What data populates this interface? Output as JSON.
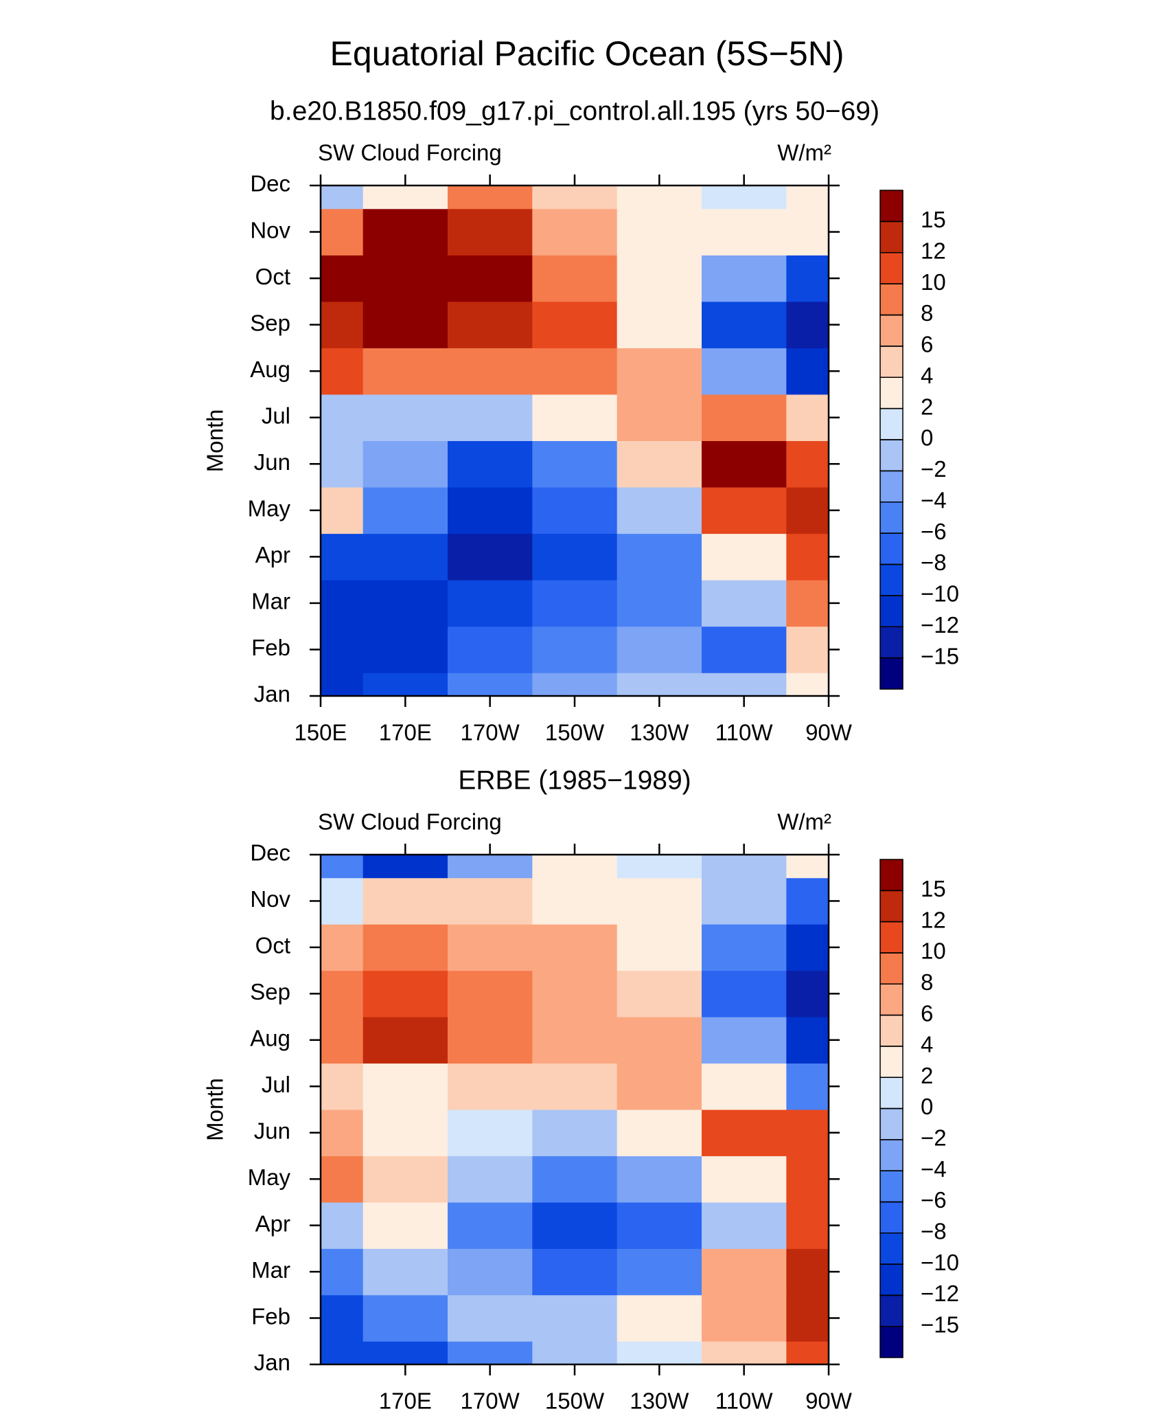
{
  "title": "Equatorial Pacific Ocean (5S−5N)",
  "chart_data": [
    {
      "type": "contour",
      "title": "b.e20.B1850.f09_g17.pi_control.all.195 (yrs 50−69)",
      "left_label": "SW Cloud Forcing",
      "right_label": "W/m²",
      "y_label": "Month",
      "categories": [
        "Jan",
        "Feb",
        "Mar",
        "Apr",
        "May",
        "Jun",
        "Jul",
        "Aug",
        "Sep",
        "Oct",
        "Nov",
        "Dec"
      ],
      "x": [
        150,
        170,
        190,
        210,
        230,
        250,
        270
      ],
      "xlim": [
        150,
        270
      ],
      "xticks": [
        {
          "value": 150,
          "label": "150E"
        },
        {
          "value": 170,
          "label": "170E"
        },
        {
          "value": 190,
          "label": "170W"
        },
        {
          "value": 210,
          "label": "150W"
        },
        {
          "value": 230,
          "label": "130W"
        },
        {
          "value": 250,
          "label": "110W"
        },
        {
          "value": 270,
          "label": "90W"
        }
      ],
      "z": [
        [
          -12,
          -10,
          -6,
          -4,
          -2,
          -2,
          2
        ],
        [
          -12,
          -12,
          -8,
          -6,
          -4,
          -8,
          4
        ],
        [
          -12,
          -12,
          -10,
          -8,
          -6,
          -2,
          8
        ],
        [
          -10,
          -10,
          -15,
          -10,
          -6,
          2,
          10
        ],
        [
          4,
          -6,
          -12,
          -8,
          -2,
          10,
          12
        ],
        [
          -2,
          -4,
          -10,
          -6,
          4,
          15,
          10
        ],
        [
          -2,
          -2,
          -2,
          2,
          6,
          8,
          4
        ],
        [
          10,
          8,
          8,
          8,
          6,
          -4,
          -12
        ],
        [
          12,
          15,
          12,
          10,
          2,
          -10,
          -15
        ],
        [
          15,
          15,
          15,
          8,
          2,
          -4,
          -10
        ],
        [
          8,
          15,
          12,
          6,
          2,
          2,
          2
        ],
        [
          -2,
          2,
          8,
          4,
          2,
          0,
          2
        ]
      ],
      "levels": [
        {
          "value": -15,
          "label": "−15"
        },
        {
          "value": -12,
          "label": "−12"
        },
        {
          "value": -10,
          "label": "−10"
        },
        {
          "value": -8,
          "label": "−8"
        },
        {
          "value": -6,
          "label": "−6"
        },
        {
          "value": -4,
          "label": "−4"
        },
        {
          "value": -2,
          "label": "−2"
        },
        0,
        2,
        4,
        6,
        8,
        10,
        12,
        15
      ],
      "colors": [
        "#00007f",
        "#0a1fa8",
        "#0033cc",
        "#0a48e0",
        "#2a64f0",
        "#4a82f5",
        "#7da4f5",
        "#a9c4f5",
        "#d4e6fc",
        "#fdeee0",
        "#fcd0b6",
        "#fba882",
        "#f57b4c",
        "#e8481e",
        "#c02a0c",
        "#8c0000"
      ]
    },
    {
      "type": "contour",
      "title": "ERBE (1985−1989)",
      "left_label": "SW Cloud Forcing",
      "right_label": "W/m²",
      "y_label": "Month",
      "categories": [
        "Jan",
        "Feb",
        "Mar",
        "Apr",
        "May",
        "Jun",
        "Jul",
        "Aug",
        "Sep",
        "Oct",
        "Nov",
        "Dec"
      ],
      "x": [
        150,
        170,
        190,
        210,
        230,
        250,
        270
      ],
      "xlim": [
        150,
        270
      ],
      "xticks": [
        {
          "value": 170,
          "label": "170E"
        },
        {
          "value": 190,
          "label": "170W"
        },
        {
          "value": 210,
          "label": "150W"
        },
        {
          "value": 230,
          "label": "130W"
        },
        {
          "value": 250,
          "label": "110W"
        },
        {
          "value": 270,
          "label": "90W"
        }
      ],
      "z": [
        [
          -10,
          -10,
          -6,
          -2,
          0,
          4,
          10
        ],
        [
          -10,
          -6,
          -2,
          -2,
          2,
          6,
          12
        ],
        [
          -6,
          -2,
          -4,
          -8,
          -6,
          6,
          12
        ],
        [
          -2,
          2,
          -6,
          -10,
          -8,
          -2,
          10
        ],
        [
          8,
          4,
          -2,
          -6,
          -4,
          2,
          10
        ],
        [
          6,
          2,
          0,
          -2,
          2,
          10,
          10
        ],
        [
          4,
          2,
          4,
          4,
          6,
          2,
          -6
        ],
        [
          8,
          12,
          8,
          6,
          6,
          -4,
          -12
        ],
        [
          8,
          10,
          8,
          6,
          4,
          -8,
          -15
        ],
        [
          6,
          8,
          6,
          6,
          2,
          -6,
          -12
        ],
        [
          0,
          4,
          4,
          2,
          2,
          -2,
          -8
        ],
        [
          -6,
          -12,
          -4,
          2,
          0,
          -2,
          2
        ]
      ],
      "levels": [
        {
          "value": -15,
          "label": "−15"
        },
        {
          "value": -12,
          "label": "−12"
        },
        {
          "value": -10,
          "label": "−10"
        },
        {
          "value": -8,
          "label": "−8"
        },
        {
          "value": -6,
          "label": "−6"
        },
        {
          "value": -4,
          "label": "−4"
        },
        {
          "value": -2,
          "label": "−2"
        },
        0,
        2,
        4,
        6,
        8,
        10,
        12,
        15
      ],
      "colors": [
        "#00007f",
        "#0a1fa8",
        "#0033cc",
        "#0a48e0",
        "#2a64f0",
        "#4a82f5",
        "#7da4f5",
        "#a9c4f5",
        "#d4e6fc",
        "#fdeee0",
        "#fcd0b6",
        "#fba882",
        "#f57b4c",
        "#e8481e",
        "#c02a0c",
        "#8c0000"
      ]
    }
  ]
}
